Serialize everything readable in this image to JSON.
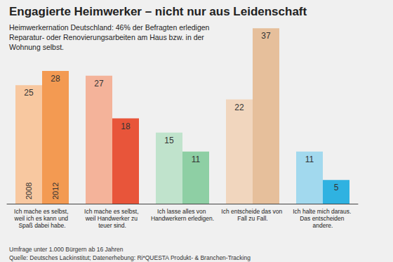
{
  "chart_data": {
    "type": "bar",
    "title": "Engagierte Heimwerker – nicht nur aus Leidenschaft",
    "subtitle": "Heimwerkernation Deutschland: 46% der Befragten erledigen Reparatur- oder Renovierungsarbeiten am Haus bzw. in der Wohnung selbst.",
    "annotations": [
      "Umfrage unter 1.000 Bürgern ab 16 Jahren",
      "Quelle: Deutsches Lackinstitut; Datenerhebung: Ri*QUESTA Produkt- & Branchen-Tracking"
    ],
    "categories": [
      "Ich mache es selbst, weil ich es kann und Spaß dabei habe.",
      "Ich mache es selbst, weil Handwerker zu teuer sind.",
      "Ich lasse alles von Handwerkern erledigen.",
      "Ich entscheide das von Fall zu Fall.",
      "Ich halte mich daraus. Das entscheiden andere."
    ],
    "series": [
      {
        "name": "2008",
        "values": [
          25,
          27,
          15,
          22,
          11
        ],
        "colors": [
          "#f8c8a0",
          "#f4b39a",
          "#c0e3cc",
          "#f1d6be",
          "#a2d9ee"
        ]
      },
      {
        "name": "2012",
        "values": [
          28,
          18,
          11,
          37,
          5
        ],
        "colors": [
          "#f39a52",
          "#e8553a",
          "#8ecfa4",
          "#e6bf9b",
          "#2fb2e1"
        ]
      }
    ],
    "ylim": [
      0,
      40
    ],
    "grid": false,
    "data_labels": true,
    "tick_labels": "x"
  }
}
